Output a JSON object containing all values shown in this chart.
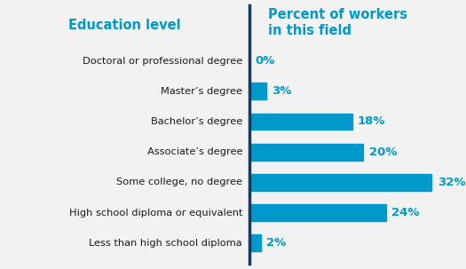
{
  "categories": [
    "Doctoral or professional degree",
    "Master’s degree",
    "Bachelor’s degree",
    "Associate’s degree",
    "Some college, no degree",
    "High school diploma or equivalent",
    "Less than high school diploma"
  ],
  "values": [
    0,
    3,
    18,
    20,
    32,
    24,
    2
  ],
  "bar_color": "#0099cc",
  "label_color": "#0099cc",
  "left_header": "Education level",
  "right_header": "Percent of workers\nin this field",
  "header_color": "#0099cc",
  "background_color": "#f2f2f2",
  "divider_color": "#1a3a5c",
  "text_color": "#1a1a1a",
  "bar_height": 0.55,
  "xlim": [
    0,
    38
  ],
  "figsize": [
    5.25,
    3.03
  ],
  "dpi": 100,
  "label_fontsize": 8.2,
  "header_fontsize": 10.5,
  "value_fontsize": 9.5
}
